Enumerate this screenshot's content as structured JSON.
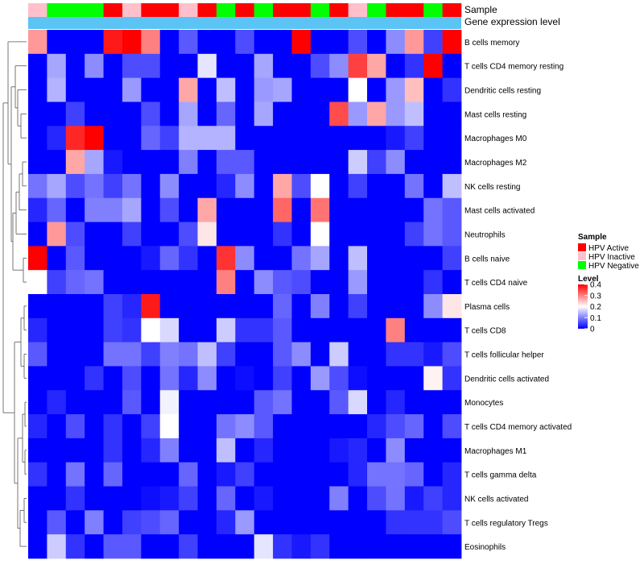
{
  "chart_data": {
    "type": "heatmap",
    "title": "",
    "annotation_titles": {
      "sample": "Sample",
      "gene": "Gene expression level"
    },
    "rows": [
      "B cells memory",
      "T cells CD4 memory resting",
      "Dendritic cells resting",
      "Mast cells resting",
      "Macrophages M0",
      "Macrophages M2",
      "NK cells resting",
      "Mast cells activated",
      "Neutrophils",
      "B cells naive",
      "T cells CD4 naive",
      "Plasma cells",
      "T cells CD8",
      "T cells follicular helper",
      "Dendritic cells activated",
      "Monocytes",
      "T cells CD4 memory activated",
      "Macrophages M1",
      "T cells gamma delta",
      "NK cells activated",
      "T cells regulatory  Tregs",
      "Eosinophils"
    ],
    "column_groups": [
      "HPV Inactive",
      "HPV Negative",
      "HPV Negative",
      "HPV Negative",
      "HPV Active",
      "HPV Inactive",
      "HPV Active",
      "HPV Active",
      "HPV Inactive",
      "HPV Active",
      "HPV Negative",
      "HPV Active",
      "HPV Negative",
      "HPV Active",
      "HPV Active",
      "HPV Negative",
      "HPV Active",
      "HPV Inactive",
      "HPV Negative",
      "HPV Active",
      "HPV Active",
      "HPV Negative",
      "HPV Active"
    ],
    "values": [
      [
        0.28,
        0.0,
        0.0,
        0.0,
        0.38,
        0.4,
        0.3,
        0.0,
        0.07,
        0.0,
        0.0,
        0.06,
        0.0,
        0.0,
        0.4,
        0.0,
        0.0,
        0.06,
        0.0,
        0.11,
        0.28,
        0.05,
        0.4
      ],
      [
        0.0,
        0.13,
        0.0,
        0.11,
        0.0,
        0.06,
        0.06,
        0.0,
        0.0,
        0.18,
        0.0,
        0.0,
        0.13,
        0.0,
        0.0,
        0.06,
        0.11,
        0.35,
        0.27,
        0.0,
        0.04,
        0.4,
        0.0
      ],
      [
        0.0,
        0.14,
        0.0,
        0.0,
        0.0,
        0.12,
        0.0,
        0.0,
        0.27,
        0.0,
        0.15,
        0.0,
        0.12,
        0.13,
        0.0,
        0.0,
        0.0,
        0.2,
        0.0,
        0.12,
        0.25,
        0.0,
        0.04
      ],
      [
        0.0,
        0.0,
        0.05,
        0.0,
        0.0,
        0.0,
        0.06,
        0.0,
        0.13,
        0.0,
        0.08,
        0.0,
        0.13,
        0.0,
        0.0,
        0.0,
        0.34,
        0.12,
        0.27,
        0.12,
        0.15,
        0.0,
        0.0
      ],
      [
        0.0,
        0.03,
        0.37,
        0.4,
        0.0,
        0.0,
        0.08,
        0.05,
        0.14,
        0.14,
        0.14,
        0.0,
        0.0,
        0.0,
        0.0,
        0.0,
        0.0,
        0.0,
        0.0,
        0.02,
        0.05,
        0.0,
        0.0
      ],
      [
        0.0,
        0.0,
        0.27,
        0.13,
        0.02,
        0.0,
        0.0,
        0.0,
        0.1,
        0.0,
        0.07,
        0.07,
        0.0,
        0.0,
        0.0,
        0.0,
        0.0,
        0.16,
        0.05,
        0.11,
        0.0,
        0.0,
        0.0
      ],
      [
        0.09,
        0.13,
        0.06,
        0.09,
        0.05,
        0.09,
        0.0,
        0.11,
        0.0,
        0.0,
        0.03,
        0.11,
        0.0,
        0.27,
        0.06,
        0.2,
        0.0,
        0.05,
        0.0,
        0.0,
        0.09,
        0.0,
        0.15
      ],
      [
        0.03,
        0.08,
        0.0,
        0.1,
        0.1,
        0.13,
        0.0,
        0.06,
        0.0,
        0.27,
        0.0,
        0.0,
        0.0,
        0.32,
        0.0,
        0.31,
        0.0,
        0.0,
        0.0,
        0.0,
        0.0,
        0.09,
        0.07
      ],
      [
        0.0,
        0.28,
        0.06,
        0.0,
        0.0,
        0.05,
        0.0,
        0.0,
        0.06,
        0.22,
        0.0,
        0.0,
        0.0,
        0.04,
        0.0,
        0.2,
        0.0,
        0.0,
        0.0,
        0.0,
        0.05,
        0.09,
        0.07
      ],
      [
        0.4,
        0.0,
        0.07,
        0.0,
        0.0,
        0.0,
        0.02,
        0.08,
        0.04,
        0.0,
        0.36,
        0.11,
        0.0,
        0.0,
        0.09,
        0.13,
        0.0,
        0.15,
        0.0,
        0.0,
        0.0,
        0.0,
        0.05
      ],
      [
        0.2,
        0.05,
        0.08,
        0.09,
        0.0,
        0.0,
        0.0,
        0.0,
        0.0,
        0.0,
        0.3,
        0.0,
        0.11,
        0.07,
        0.06,
        0.0,
        0.0,
        0.12,
        0.0,
        0.0,
        0.0,
        0.04,
        0.0
      ],
      [
        0.0,
        0.0,
        0.0,
        0.0,
        0.05,
        0.03,
        0.38,
        0.0,
        0.0,
        0.0,
        0.0,
        0.0,
        0.0,
        0.08,
        0.0,
        0.1,
        0.0,
        0.05,
        0.0,
        0.0,
        0.0,
        0.11,
        0.22
      ],
      [
        0.03,
        0.0,
        0.0,
        0.0,
        0.05,
        0.04,
        0.2,
        0.17,
        0.0,
        0.0,
        0.16,
        0.04,
        0.04,
        0.07,
        0.0,
        0.0,
        0.0,
        0.0,
        0.0,
        0.3,
        0.0,
        0.0,
        0.0
      ],
      [
        0.07,
        0.0,
        0.0,
        0.0,
        0.09,
        0.09,
        0.05,
        0.1,
        0.09,
        0.15,
        0.05,
        0.0,
        0.0,
        0.07,
        0.11,
        0.0,
        0.16,
        0.0,
        0.0,
        0.04,
        0.04,
        0.02,
        0.06
      ],
      [
        0.0,
        0.0,
        0.0,
        0.04,
        0.0,
        0.06,
        0.0,
        0.09,
        0.03,
        0.11,
        0.0,
        0.01,
        0.0,
        0.05,
        0.0,
        0.12,
        0.06,
        0.01,
        0.0,
        0.0,
        0.0,
        0.21,
        0.04
      ],
      [
        0.0,
        0.03,
        0.0,
        0.0,
        0.0,
        0.07,
        0.0,
        0.19,
        0.0,
        0.0,
        0.0,
        0.0,
        0.07,
        0.09,
        0.0,
        0.0,
        0.07,
        0.17,
        0.0,
        0.03,
        0.0,
        0.0,
        0.0
      ],
      [
        0.03,
        0.0,
        0.06,
        0.0,
        0.04,
        0.0,
        0.05,
        0.2,
        0.0,
        0.0,
        0.09,
        0.11,
        0.07,
        0.0,
        0.0,
        0.0,
        0.0,
        0.0,
        0.03,
        0.06,
        0.08,
        0.0,
        0.06
      ],
      [
        0.0,
        0.0,
        0.0,
        0.0,
        0.04,
        0.0,
        0.03,
        0.1,
        0.0,
        0.0,
        0.15,
        0.0,
        0.03,
        0.0,
        0.0,
        0.0,
        0.02,
        0.03,
        0.0,
        0.11,
        0.0,
        0.0,
        0.0
      ],
      [
        0.04,
        0.0,
        0.09,
        0.0,
        0.08,
        0.0,
        0.0,
        0.0,
        0.08,
        0.0,
        0.02,
        0.05,
        0.0,
        0.0,
        0.0,
        0.0,
        0.0,
        0.03,
        0.09,
        0.09,
        0.08,
        0.0,
        0.03
      ],
      [
        0.0,
        0.0,
        0.04,
        0.0,
        0.0,
        0.0,
        0.01,
        0.02,
        0.05,
        0.0,
        0.08,
        0.0,
        0.02,
        0.0,
        0.0,
        0.0,
        0.1,
        0.0,
        0.06,
        0.09,
        0.02,
        0.05,
        0.03
      ],
      [
        0.0,
        0.07,
        0.0,
        0.1,
        0.0,
        0.05,
        0.06,
        0.08,
        0.0,
        0.0,
        0.03,
        0.12,
        0.0,
        0.0,
        0.0,
        0.0,
        0.0,
        0.0,
        0.0,
        0.04,
        0.04,
        0.04,
        0.06
      ],
      [
        0.0,
        0.16,
        0.04,
        0.0,
        0.07,
        0.07,
        0.0,
        0.0,
        0.05,
        0.0,
        0.0,
        0.0,
        0.18,
        0.04,
        0.02,
        0.04,
        0.0,
        0.0,
        0.0,
        0.0,
        0.0,
        0.0,
        0.0
      ]
    ],
    "color_scale": {
      "min": 0,
      "max": 0.4,
      "low": "#0000ff",
      "mid": "#ffffff",
      "high": "#ff0000",
      "mid_value": 0.2
    },
    "legend": {
      "sample_title": "Sample",
      "sample_items": [
        {
          "label": "HPV Active",
          "color": "#ff0000"
        },
        {
          "label": "HPV Inactive",
          "color": "#ffc0cb"
        },
        {
          "label": "HPV Negative",
          "color": "#00ff00"
        }
      ],
      "level_title": "Level",
      "level_ticks": [
        "0.4",
        "0.3",
        "0.2",
        "0.1",
        "0"
      ],
      "level_tick_values": [
        0.4,
        0.3,
        0.2,
        0.1,
        0
      ]
    },
    "gene_bar_color": "#5bc4f5",
    "dendrogram": "rows clustered (left side)"
  }
}
